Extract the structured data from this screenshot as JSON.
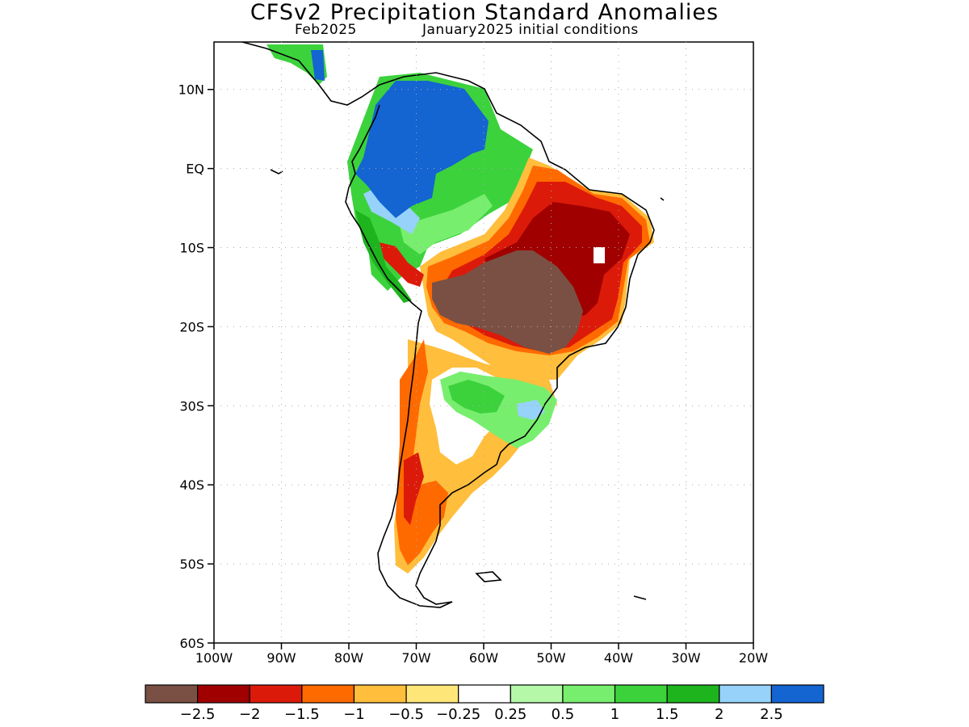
{
  "title": "CFSv2 Precipitation Standard Anomalies",
  "subtitle_left": "Feb2025",
  "subtitle_right": "January2025 initial conditions",
  "map": {
    "lon_range": [
      -100,
      -20
    ],
    "lat_range": [
      -60,
      16
    ],
    "lat_ticks": [
      {
        "lat": 10,
        "label": "10N"
      },
      {
        "lat": 0,
        "label": "EQ"
      },
      {
        "lat": -10,
        "label": "10S"
      },
      {
        "lat": -20,
        "label": "20S"
      },
      {
        "lat": -30,
        "label": "30S"
      },
      {
        "lat": -40,
        "label": "40S"
      },
      {
        "lat": -50,
        "label": "50S"
      },
      {
        "lat": -60,
        "label": "60S"
      }
    ],
    "lon_ticks": [
      {
        "lon": -100,
        "label": "100W"
      },
      {
        "lon": -90,
        "label": "90W"
      },
      {
        "lon": -80,
        "label": "80W"
      },
      {
        "lon": -70,
        "label": "70W"
      },
      {
        "lon": -60,
        "label": "60W"
      },
      {
        "lon": -50,
        "label": "50W"
      },
      {
        "lon": -40,
        "label": "40W"
      },
      {
        "lon": -30,
        "label": "30W"
      },
      {
        "lon": -20,
        "label": "20W"
      }
    ]
  },
  "colorbar": {
    "colors": [
      "#7a5044",
      "#a00000",
      "#dc1a0a",
      "#ff6a00",
      "#ffbe3c",
      "#ffe678",
      "#ffffff",
      "#b4f8a8",
      "#78ee6e",
      "#3cd23c",
      "#1eb41e",
      "#96d2fa",
      "#1464d2"
    ],
    "labels": [
      "−2.5",
      "−2",
      "−1.5",
      "−1",
      "−0.5",
      "−0.25",
      "0.25",
      "0.5",
      "1",
      "1.5",
      "2",
      "2.5"
    ]
  }
}
